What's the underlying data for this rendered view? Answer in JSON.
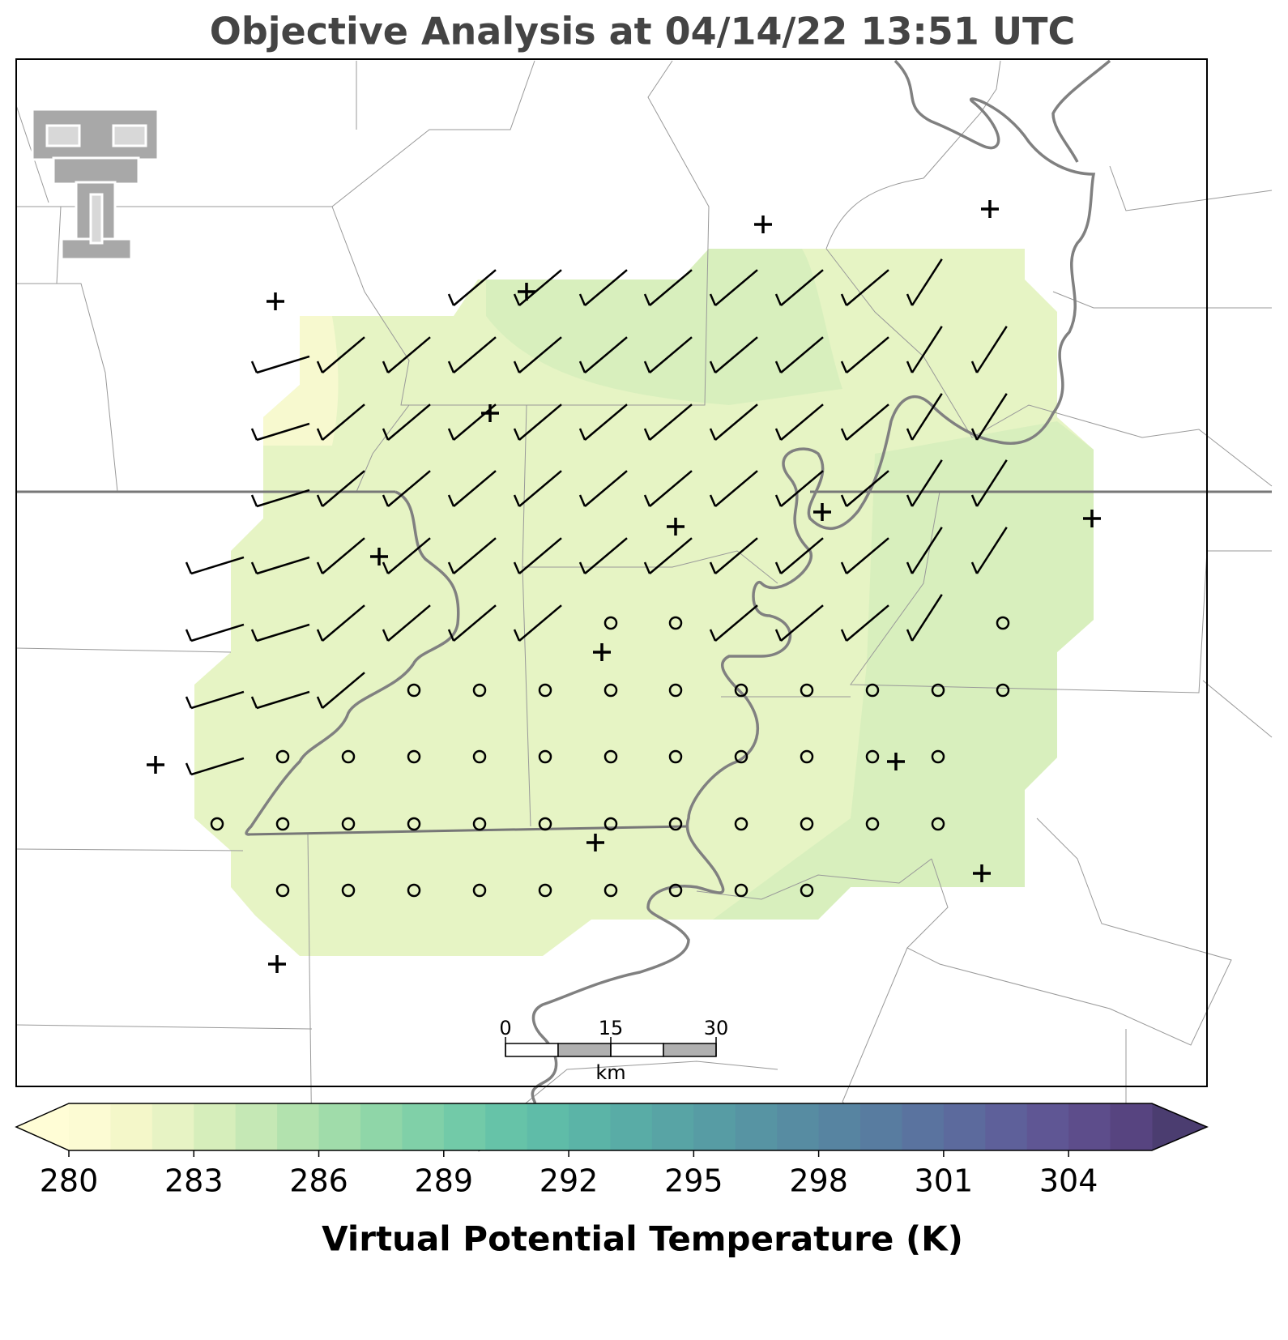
{
  "title": "Objective Analysis at 04/14/22 13:51 UTC",
  "colorbar": {
    "label": "Virtual Potential Temperature (K)",
    "lim": [
      280,
      306
    ],
    "ticks": [
      280,
      283,
      286,
      289,
      292,
      295,
      298,
      301,
      304
    ],
    "extend_colors": [
      "#fffdd6",
      "#4b3d70"
    ],
    "colors": [
      "#fcfbd3",
      "#f4f7c9",
      "#e7f3c4",
      "#d6eebb",
      "#c5e8b5",
      "#b2e2ae",
      "#a0dcaa",
      "#8fd6a8",
      "#80d0a8",
      "#72caa8",
      "#66c3a8",
      "#5fbca8",
      "#5bb4a7",
      "#59aca6",
      "#58a4a5",
      "#579ca4",
      "#5794a3",
      "#578ca2",
      "#5784a1",
      "#587ca0",
      "#5a739f",
      "#5c6a9d",
      "#5e609a",
      "#5f5694",
      "#5d4d8b",
      "#574480"
    ]
  },
  "scale_bar": {
    "ticks": [
      0,
      15,
      30
    ],
    "unit": "km"
  }
}
